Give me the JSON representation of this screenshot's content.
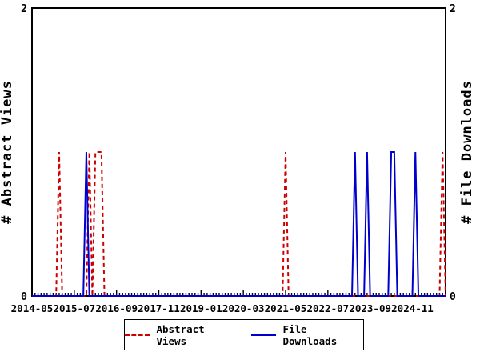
{
  "chart_data": {
    "type": "line",
    "title": "",
    "x_axis": {
      "start": "2014-05",
      "end": "2025-10",
      "minor_tick_unit": "month",
      "major_tick_interval_months": 14,
      "tick_labels": [
        "2014-05",
        "2015-07",
        "2016-09",
        "2017-11",
        "2019-01",
        "2020-03",
        "2021-05",
        "2022-07",
        "2023-09",
        "2024-11"
      ]
    },
    "y_left": {
      "label": "# Abstract Views",
      "range": [
        0,
        2
      ],
      "ticks": [
        0,
        2
      ],
      "tick_labels": [
        "0",
        "2"
      ]
    },
    "y_right": {
      "label": "# File Downloads",
      "range": [
        0,
        2
      ],
      "ticks": [
        0,
        2
      ],
      "tick_labels": [
        "0",
        "2"
      ]
    },
    "grid": false,
    "series": [
      {
        "name": "Abstract Views",
        "axis": "left",
        "color": "#cc0000",
        "line_style": "dashed",
        "default_value": 0,
        "months_with_value_1": [
          "2015-02",
          "2015-12",
          "2016-02",
          "2016-03",
          "2016-04",
          "2021-05",
          "2025-09"
        ]
      },
      {
        "name": "File Downloads",
        "axis": "right",
        "color": "#0000cc",
        "line_style": "solid",
        "default_value": 0,
        "months_with_value_1": [
          "2015-11",
          "2023-04",
          "2023-08",
          "2024-04",
          "2024-05",
          "2024-12"
        ]
      }
    ],
    "legend": {
      "position": "bottom-center",
      "entries": [
        {
          "label": "Abstract Views",
          "color": "#cc0000",
          "style": "dashed"
        },
        {
          "label": "File Downloads",
          "color": "#0000cc",
          "style": "solid"
        }
      ]
    },
    "colors": {
      "axis": "#000000",
      "background": "#ffffff"
    }
  }
}
